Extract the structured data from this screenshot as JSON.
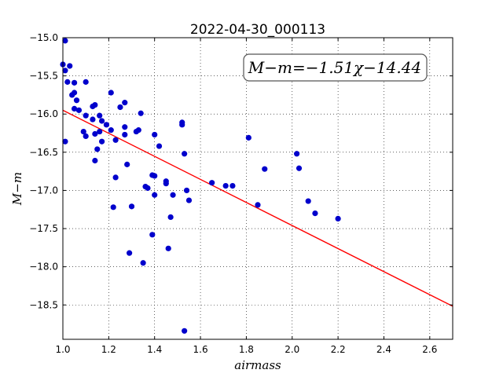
{
  "chart_data": {
    "type": "scatter",
    "title": "2022-04-30_000113",
    "xlabel": "airmass",
    "ylabel": "M−m",
    "xlim": [
      1.0,
      2.7
    ],
    "ylim": [
      -15.0,
      -18.95
    ],
    "y_inverted": true,
    "xticks": [
      "1.0",
      "1.2",
      "1.4",
      "1.6",
      "1.8",
      "2.0",
      "2.2",
      "2.4",
      "2.6"
    ],
    "yticks": [
      "−15.0",
      "−15.5",
      "−16.0",
      "−16.5",
      "−17.0",
      "−17.5",
      "−18.0",
      "−18.5"
    ],
    "grid": true,
    "fit_label": "M−m=−1.51χ−14.44",
    "fit": {
      "slope": -1.51,
      "intercept": -14.44,
      "color": "#ff0000"
    },
    "point_color": "#0000cc",
    "points": [
      [
        1.01,
        -15.04
      ],
      [
        1.0,
        -15.35
      ],
      [
        1.01,
        -15.43
      ],
      [
        1.02,
        -15.58
      ],
      [
        1.03,
        -15.37
      ],
      [
        1.04,
        -15.75
      ],
      [
        1.05,
        -15.72
      ],
      [
        1.05,
        -15.59
      ],
      [
        1.05,
        -15.93
      ],
      [
        1.06,
        -15.82
      ],
      [
        1.07,
        -15.95
      ],
      [
        1.1,
        -15.58
      ],
      [
        1.13,
        -15.9
      ],
      [
        1.14,
        -15.88
      ],
      [
        1.01,
        -16.36
      ],
      [
        1.1,
        -16.02
      ],
      [
        1.13,
        -16.07
      ],
      [
        1.09,
        -16.23
      ],
      [
        1.1,
        -16.29
      ],
      [
        1.14,
        -16.26
      ],
      [
        1.15,
        -16.46
      ],
      [
        1.14,
        -16.61
      ],
      [
        1.16,
        -16.02
      ],
      [
        1.16,
        -16.23
      ],
      [
        1.17,
        -16.36
      ],
      [
        1.17,
        -16.09
      ],
      [
        1.19,
        -16.14
      ],
      [
        1.21,
        -16.21
      ],
      [
        1.21,
        -15.72
      ],
      [
        1.23,
        -16.34
      ],
      [
        1.25,
        -15.91
      ],
      [
        1.27,
        -15.85
      ],
      [
        1.27,
        -16.17
      ],
      [
        1.27,
        -16.27
      ],
      [
        1.28,
        -16.66
      ],
      [
        1.23,
        -16.83
      ],
      [
        1.22,
        -17.22
      ],
      [
        1.3,
        -17.21
      ],
      [
        1.29,
        -17.82
      ],
      [
        1.32,
        -16.23
      ],
      [
        1.33,
        -16.21
      ],
      [
        1.34,
        -15.99
      ],
      [
        1.36,
        -16.95
      ],
      [
        1.37,
        -16.97
      ],
      [
        1.39,
        -16.8
      ],
      [
        1.4,
        -16.81
      ],
      [
        1.4,
        -16.27
      ],
      [
        1.4,
        -17.06
      ],
      [
        1.39,
        -17.58
      ],
      [
        1.35,
        -17.95
      ],
      [
        1.42,
        -16.42
      ],
      [
        1.45,
        -16.88
      ],
      [
        1.45,
        -16.91
      ],
      [
        1.46,
        -17.76
      ],
      [
        1.47,
        -17.35
      ],
      [
        1.48,
        -17.06
      ],
      [
        1.52,
        -16.11
      ],
      [
        1.52,
        -16.14
      ],
      [
        1.53,
        -16.52
      ],
      [
        1.54,
        -17.0
      ],
      [
        1.55,
        -17.13
      ],
      [
        1.53,
        -18.84
      ],
      [
        1.65,
        -16.9
      ],
      [
        1.71,
        -16.94
      ],
      [
        1.74,
        -16.94
      ],
      [
        1.81,
        -16.31
      ],
      [
        1.85,
        -17.19
      ],
      [
        1.88,
        -16.72
      ],
      [
        2.02,
        -16.52
      ],
      [
        2.03,
        -16.71
      ],
      [
        2.07,
        -17.14
      ],
      [
        2.1,
        -17.3
      ],
      [
        2.2,
        -17.37
      ]
    ]
  }
}
